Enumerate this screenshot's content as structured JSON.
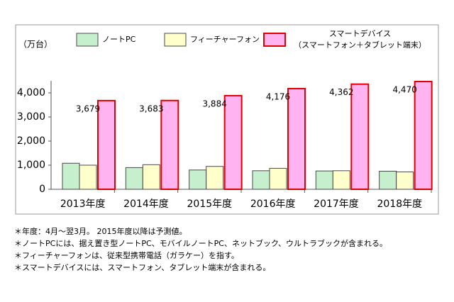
{
  "chart_data": {
    "type": "bar",
    "y_unit": "（万台）",
    "categories": [
      "2013年度",
      "2014年度",
      "2015年度",
      "2016年度",
      "2017年度",
      "2018年度"
    ],
    "series": [
      {
        "name": "ノートPC",
        "color": "#c6efce",
        "border": "#4a4a4a",
        "values": [
          1080,
          900,
          800,
          770,
          760,
          750
        ]
      },
      {
        "name": "フィーチャーフォン",
        "color": "#ffffcc",
        "border": "#4a4a4a",
        "values": [
          1000,
          1020,
          950,
          870,
          770,
          720
        ]
      },
      {
        "name": "スマートデバイス\n（スマートフォン＋タブレット端末）",
        "color": "#ffb3f0",
        "border": "#e00000",
        "values": [
          3679,
          3683,
          3884,
          4176,
          4362,
          4470
        ],
        "value_labels": [
          "3,679",
          "3,683",
          "3,884",
          "4,176",
          "4,362",
          "4,470"
        ]
      }
    ],
    "ylim": [
      0,
      4500
    ],
    "yticks": [
      0,
      {
        "value": 1000,
        "label": "1,000"
      },
      {
        "value": 2000,
        "label": "2,000"
      },
      {
        "value": 3000,
        "label": "3,000"
      },
      {
        "value": 4000,
        "label": "4,000"
      }
    ],
    "notes": [
      "＊年度：4月～翌3月。 2015年度以降は予測値。",
      "＊ノートPCには、据え置き型ノートPC、モバイルノートPC、ネットブック、ウルトラブックが含まれる。",
      "＊フィーチャーフォンは、従来型携帯電話（ガラケー）を指す。",
      "＊スマートデバイスには、スマートフォン、タブレット端末が含まれる。"
    ]
  }
}
